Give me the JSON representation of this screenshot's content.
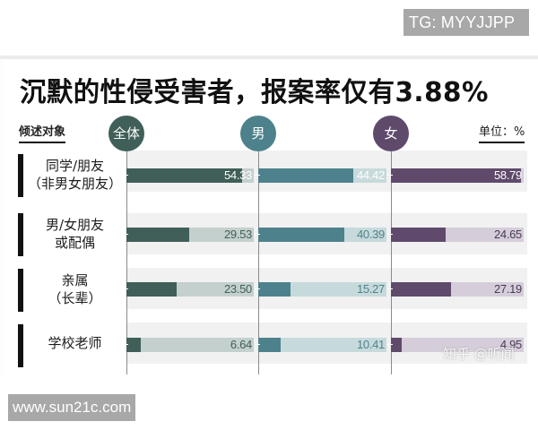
{
  "watermarks": {
    "top": "TG: MYYJJPP",
    "bottom": "www.sun21c.com",
    "zhihu": "知乎 @听闻"
  },
  "header": {
    "title": "沉默的性侵受害者，报案率仅有3.88%",
    "subject_heading": "倾述对象",
    "unit": "单位：%"
  },
  "columns": [
    {
      "label": "全体",
      "color": "#3f5f58",
      "track_color": "#c4d0cd",
      "text_on_track": "#3f5f58"
    },
    {
      "label": "男",
      "color": "#4d828c",
      "track_color": "#c7dadb",
      "text_on_track": "#4d828c"
    },
    {
      "label": "女",
      "color": "#5f4a6c",
      "track_color": "#d5cdd9",
      "text_on_track": "#4a3a55"
    }
  ],
  "rows": [
    {
      "label_line1": "同学/朋友",
      "label_line2": "（非男女朋友）",
      "values": [
        "54.33",
        "44.42",
        "58.79"
      ]
    },
    {
      "label_line1": "男/女朋友",
      "label_line2": "或配偶",
      "values": [
        "29.53",
        "40.39",
        "24.65"
      ]
    },
    {
      "label_line1": "亲属",
      "label_line2": "（长辈）",
      "values": [
        "23.50",
        "15.27",
        "27.19"
      ]
    },
    {
      "label_line1": "学校老师",
      "label_line2": "",
      "values": [
        "6.64",
        "10.41",
        "4.95"
      ]
    }
  ],
  "chart_data": {
    "type": "bar",
    "orientation": "horizontal",
    "title": "沉默的性侵受害者，报案率仅有3.88%",
    "xlabel": "",
    "ylabel": "倾述对象",
    "unit": "%",
    "categories": [
      "同学/朋友（非男女朋友）",
      "男/女朋友或配偶",
      "亲属（长辈）",
      "学校老师"
    ],
    "series": [
      {
        "name": "全体",
        "values": [
          54.33,
          29.53,
          23.5,
          6.64
        ],
        "color": "#3f5f58"
      },
      {
        "name": "男",
        "values": [
          44.42,
          40.39,
          15.27,
          10.41
        ],
        "color": "#4d828c"
      },
      {
        "name": "女",
        "values": [
          58.79,
          24.65,
          27.19,
          4.95
        ],
        "color": "#5f4a6c"
      }
    ],
    "xlim": [
      0,
      60
    ],
    "grid": false,
    "legend_position": "top (column header circles)"
  }
}
